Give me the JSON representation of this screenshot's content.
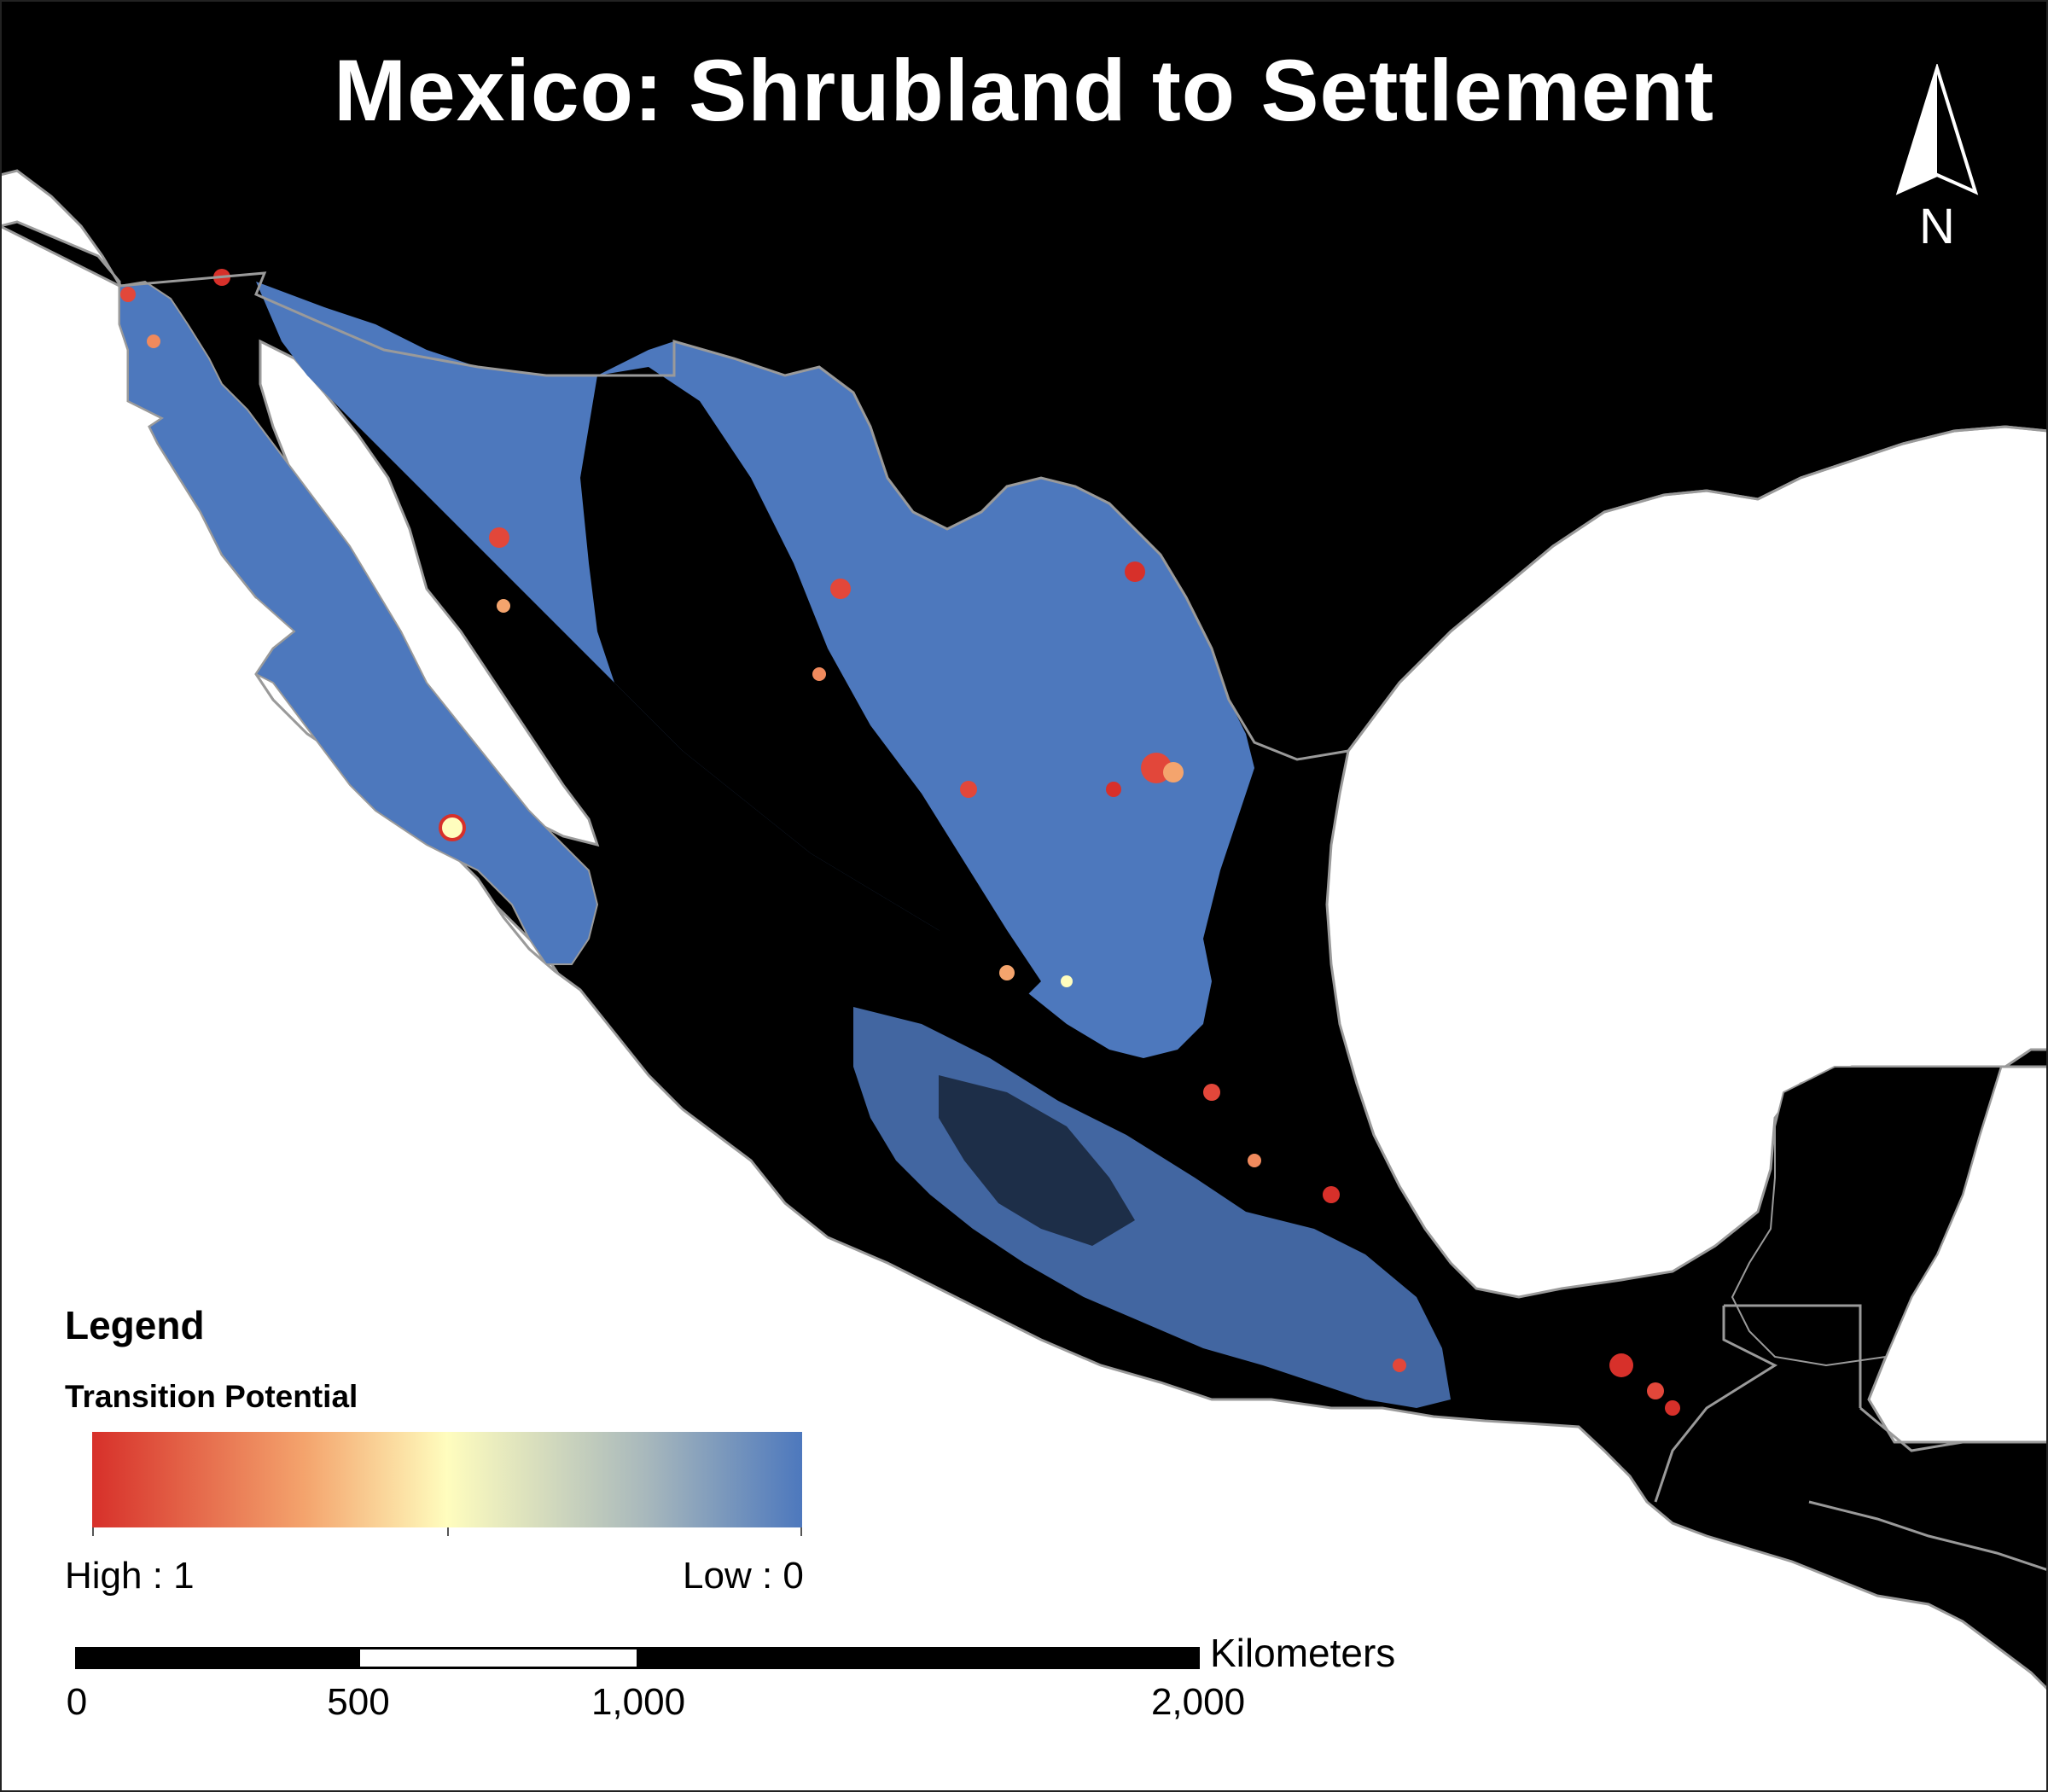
{
  "map": {
    "title": "Mexico: Shrubland to Settlement",
    "north_arrow_label": "N",
    "background_color": "#000000",
    "water_color": "#ffffff",
    "shrubland_color": "#4d78bd"
  },
  "legend": {
    "heading": "Legend",
    "layer_name": "Transition Potential",
    "high_label": "High : 1",
    "low_label": "Low : 0",
    "ramp_colors": [
      "#d7302a",
      "#f4a46d",
      "#fffdbe",
      "#a8b8bc",
      "#4d78bd"
    ]
  },
  "scale_bar": {
    "units": "Kilometers",
    "ticks": [
      "0",
      "500",
      "1,000",
      "2,000"
    ]
  }
}
